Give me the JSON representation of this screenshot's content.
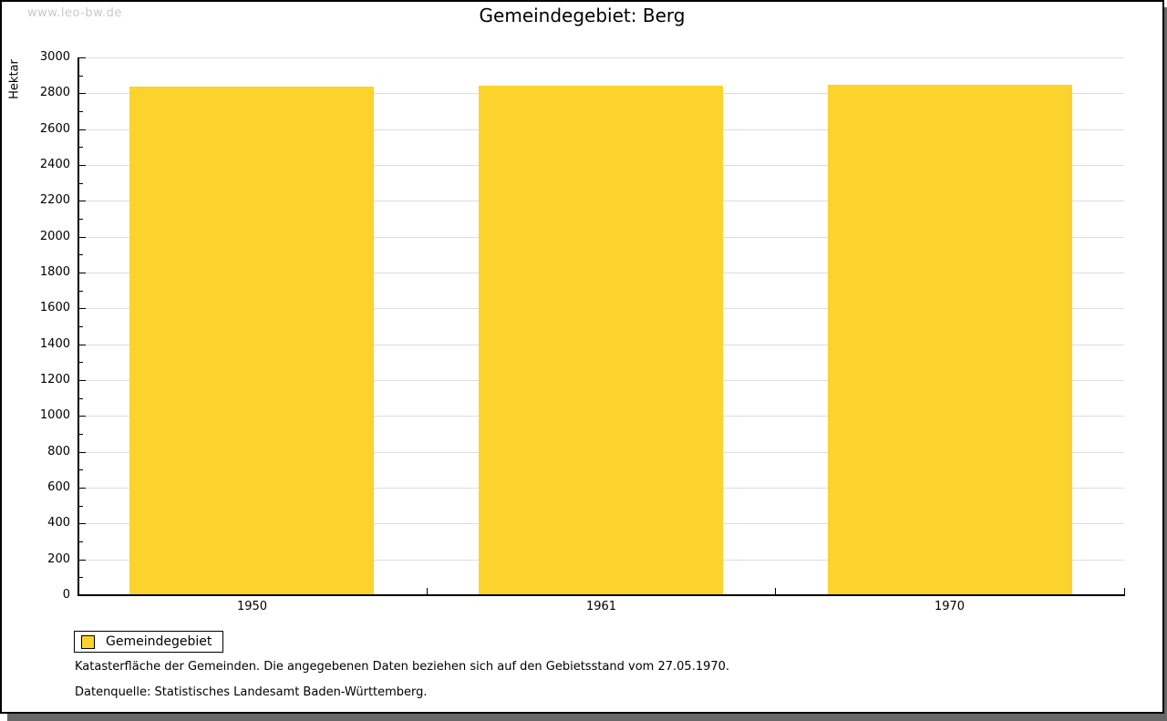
{
  "watermark": {
    "text": "www.leo-bw.de"
  },
  "header": {
    "title": "Gemeindegebiet: Berg"
  },
  "chart_data": {
    "type": "bar",
    "title": "Gemeindegebiet: Berg",
    "categories": [
      "1950",
      "1961",
      "1970"
    ],
    "series": [
      {
        "name": "Gemeindegebiet",
        "values": [
          2839,
          2841,
          2846
        ]
      }
    ],
    "xlabel": "",
    "ylabel": "Hektar",
    "ylim": [
      0,
      3000
    ],
    "y_major_step": 200,
    "y_minor_step": 100,
    "grid": true,
    "legend_position": "bottom-left",
    "bar_color": "#FCD32D"
  },
  "legend": {
    "label": "Gemeindegebiet",
    "swatch_color": "#FCD32D"
  },
  "footer": {
    "note": "Katasterfläche der Gemeinden. Die angegebenen Daten beziehen sich auf den Gebietsstand vom 27.05.1970.",
    "source": "Datenquelle: Statistisches Landesamt Baden-Württemberg."
  },
  "colors": {
    "bar": "#FCD32D",
    "grid": "#DDDDDD",
    "axis": "#000000",
    "watermark": "#C9C9C9",
    "frame_shadow": "#686868"
  }
}
